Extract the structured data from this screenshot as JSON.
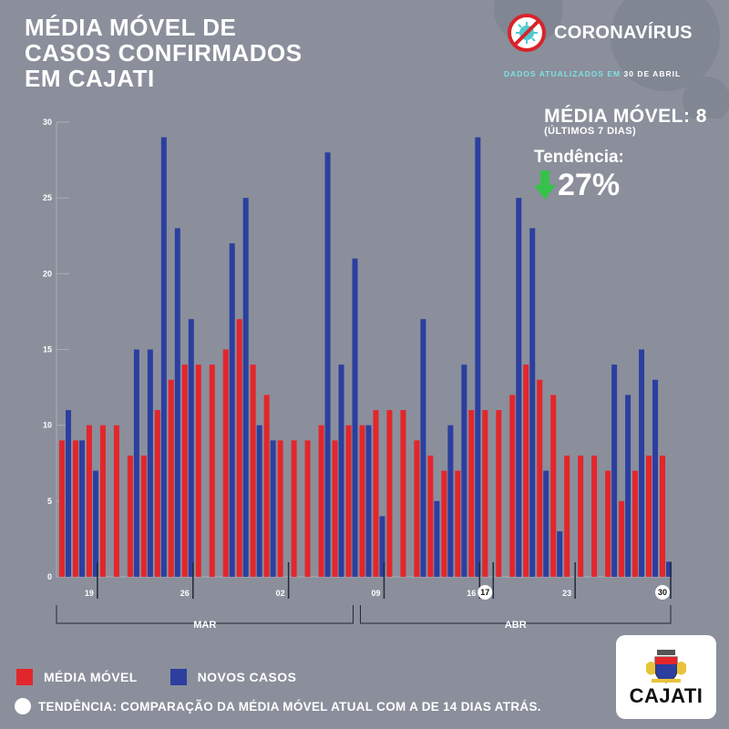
{
  "title": {
    "line1": "MÉDIA MÓVEL DE",
    "line2": "CASOS CONFIRMADOS",
    "line3": "EM CAJATI"
  },
  "brand": {
    "name": "CORONAVÍRUS",
    "icon": "no-virus-icon"
  },
  "updated": {
    "label": "DADOS ATUALIZADOS EM",
    "date": "30 DE ABRIL"
  },
  "moving_average": {
    "label": "MÉDIA MÓVEL: 8",
    "sub": "(ÚLTIMOS 7 DIAS)"
  },
  "trend": {
    "label": "Tendência:",
    "value": "27%",
    "direction": "down",
    "color": "#36c24a"
  },
  "legend": {
    "media_movel": "MÉDIA MÓVEL",
    "novos_casos": "NOVOS CASOS"
  },
  "note": "TENDÊNCIA: COMPARAÇÃO DA MÉDIA MÓVEL ATUAL COM A DE 14 DIAS ATRÁS.",
  "logo": {
    "name": "CAJATI"
  },
  "colors": {
    "background": "#8a8f9b",
    "media_movel": "#e3262b",
    "novos_casos": "#2c3f9f"
  },
  "chart_data": {
    "type": "bar",
    "title": "MÉDIA MÓVEL DE CASOS CONFIRMADOS EM CAJATI",
    "ylim": [
      0,
      30
    ],
    "yticks": [
      0,
      5,
      10,
      15,
      20,
      25,
      30
    ],
    "grid": false,
    "xtick_labels": [
      {
        "index": 2,
        "label": "19",
        "circled": false
      },
      {
        "index": 9,
        "label": "26",
        "circled": false
      },
      {
        "index": 16,
        "label": "02",
        "circled": false
      },
      {
        "index": 23,
        "label": "09",
        "circled": false
      },
      {
        "index": 30,
        "label": "16",
        "circled": false
      },
      {
        "index": 31,
        "label": "17",
        "circled": true
      },
      {
        "index": 37,
        "label": "23",
        "circled": false
      },
      {
        "index": 44,
        "label": "30",
        "circled": true
      }
    ],
    "month_labels": [
      {
        "label": "MAR",
        "start": 0,
        "end": 21
      },
      {
        "label": "ABR",
        "start": 22,
        "end": 44
      }
    ],
    "series": [
      {
        "name": "MÉDIA MÓVEL",
        "color": "#e3262b",
        "values": [
          9,
          9,
          10,
          10,
          10,
          8,
          8,
          11,
          13,
          14,
          14,
          14,
          15,
          17,
          14,
          12,
          9,
          9,
          9,
          10,
          9,
          10,
          10,
          11,
          11,
          11,
          9,
          8,
          7,
          7,
          11,
          11,
          11,
          12,
          14,
          13,
          12,
          8,
          8,
          8,
          7,
          5,
          7,
          8,
          8
        ]
      },
      {
        "name": "NOVOS CASOS",
        "color": "#2c3f9f",
        "values": [
          11,
          9,
          7,
          0,
          0,
          15,
          15,
          29,
          23,
          17,
          0,
          0,
          22,
          25,
          10,
          9,
          0,
          0,
          0,
          28,
          14,
          21,
          10,
          4,
          0,
          0,
          17,
          5,
          10,
          14,
          29,
          0,
          0,
          25,
          23,
          7,
          3,
          0,
          0,
          0,
          14,
          12,
          15,
          13,
          1
        ]
      }
    ]
  }
}
